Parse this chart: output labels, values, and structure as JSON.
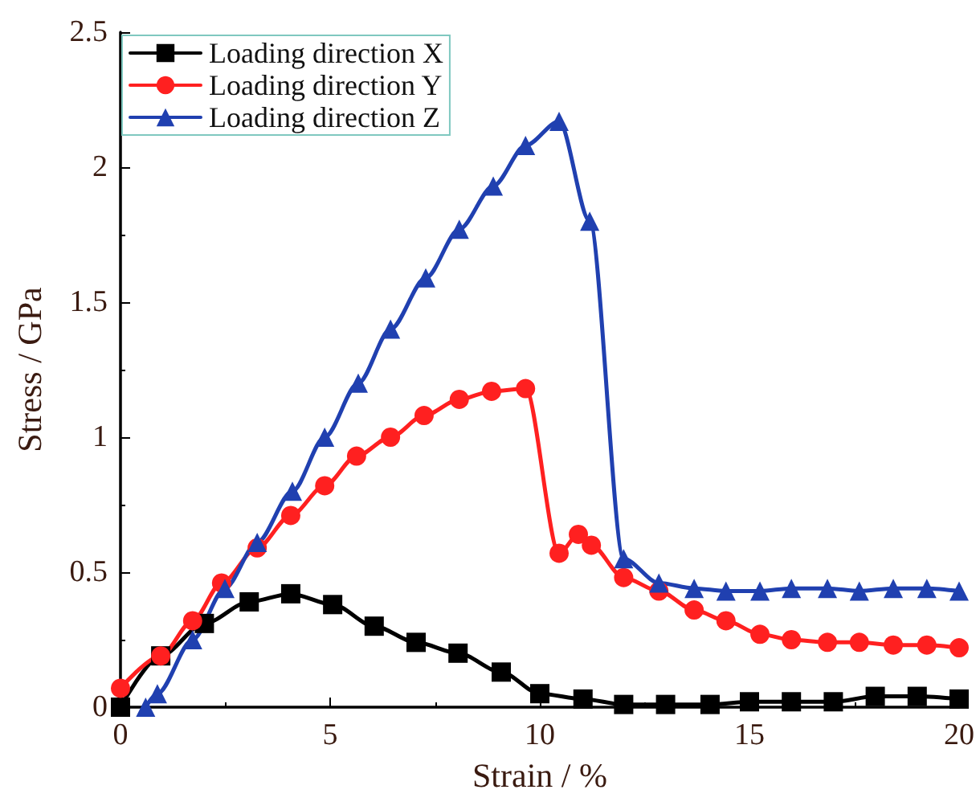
{
  "chart_data": {
    "type": "line",
    "xlabel": "Strain / %",
    "ylabel": "Stress / GPa",
    "xlim": [
      0,
      20
    ],
    "xticks": [
      0,
      5,
      10,
      15,
      20
    ],
    "ylim": [
      0,
      2.5
    ],
    "yticks": [
      0,
      0.5,
      1.0,
      1.5,
      2.0,
      2.5
    ],
    "grid": false,
    "legend": "top left",
    "line_style": "solid",
    "series": [
      {
        "name": "Loading direction X",
        "color": "#000000",
        "marker": "square",
        "x": [
          0,
          0.96,
          2.0,
          3.07,
          4.06,
          5.06,
          6.05,
          7.05,
          8.05,
          9.08,
          10.0,
          11.03,
          12.0,
          13.0,
          14.06,
          15.0,
          16.0,
          17.0,
          18.0,
          19.0,
          20.0
        ],
        "values": [
          0,
          0.19,
          0.31,
          0.39,
          0.42,
          0.38,
          0.3,
          0.24,
          0.2,
          0.13,
          0.05,
          0.03,
          0.01,
          0.01,
          0.01,
          0.02,
          0.02,
          0.02,
          0.04,
          0.04,
          0.03
        ]
      },
      {
        "name": "Loading direction Y",
        "color": "#ff2020",
        "marker": "circle",
        "x": [
          0,
          0.96,
          1.72,
          2.41,
          3.26,
          4.06,
          4.87,
          5.63,
          6.44,
          7.24,
          8.08,
          8.85,
          9.66,
          10.46,
          10.92,
          11.23,
          12.0,
          12.84,
          13.68,
          14.44,
          15.25,
          16.0,
          16.86,
          17.62,
          18.43,
          19.23,
          20.0
        ],
        "values": [
          0.07,
          0.19,
          0.32,
          0.46,
          0.59,
          0.71,
          0.82,
          0.93,
          1.0,
          1.08,
          1.14,
          1.17,
          1.18,
          0.57,
          0.64,
          0.6,
          0.48,
          0.43,
          0.36,
          0.32,
          0.27,
          0.25,
          0.24,
          0.24,
          0.23,
          0.23,
          0.22
        ]
      },
      {
        "name": "Loading direction Z",
        "color": "#2040b0",
        "marker": "triangle",
        "x": [
          0.6,
          0.88,
          1.72,
          2.49,
          3.26,
          4.1,
          4.87,
          5.67,
          6.44,
          7.28,
          8.08,
          8.89,
          9.66,
          10.46,
          11.19,
          12.0,
          12.84,
          13.68,
          14.44,
          15.25,
          16.0,
          16.86,
          17.62,
          18.43,
          19.23,
          20.0
        ],
        "values": [
          0,
          0.05,
          0.25,
          0.44,
          0.61,
          0.8,
          1.0,
          1.2,
          1.4,
          1.59,
          1.77,
          1.93,
          2.08,
          2.17,
          1.8,
          0.55,
          0.46,
          0.44,
          0.43,
          0.43,
          0.44,
          0.44,
          0.43,
          0.44,
          0.44,
          0.43
        ]
      }
    ]
  }
}
